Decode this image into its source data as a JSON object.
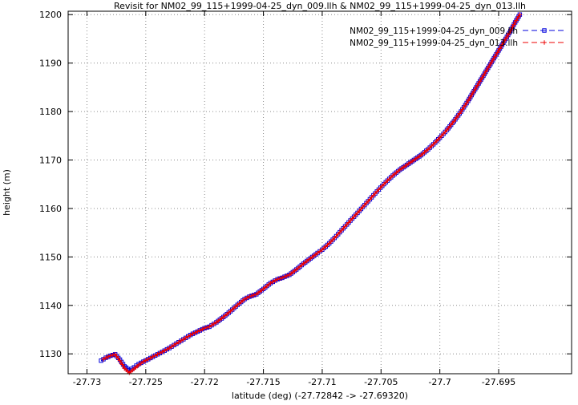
{
  "accent_colors": {
    "series1": "#0000dd",
    "series2": "#ee0000",
    "grid": "#8c8c8c",
    "axis": "#000000"
  },
  "chart_data": {
    "type": "line",
    "title": "Revisit for NM02_99_115+1999-04-25_dyn_009.llh & NM02_99_115+1999-04-25_dyn_013.llh",
    "xlabel": "latitude (deg) (-27.72842 -> -27.69320)",
    "ylabel": "height (m)",
    "xlim": [
      -27.7316,
      -27.6888
    ],
    "ylim": [
      1125.9,
      1200.7
    ],
    "grid": true,
    "legend_position": "top-right",
    "xticks": [
      {
        "value": -27.73,
        "label": "-27.73"
      },
      {
        "value": -27.725,
        "label": "-27.725"
      },
      {
        "value": -27.72,
        "label": "-27.72"
      },
      {
        "value": -27.715,
        "label": "-27.715"
      },
      {
        "value": -27.71,
        "label": "-27.71"
      },
      {
        "value": -27.705,
        "label": "-27.705"
      },
      {
        "value": -27.7,
        "label": "-27.7"
      },
      {
        "value": -27.695,
        "label": "-27.695"
      }
    ],
    "yticks": [
      1130,
      1140,
      1150,
      1160,
      1170,
      1180,
      1190,
      1200
    ],
    "series": [
      {
        "name": "NM02_99_115+1999-04-25_dyn_009.llh",
        "color": "#0000dd",
        "marker": "square",
        "points": [
          [
            -27.7288,
            1128.6
          ],
          [
            -27.7284,
            1129.2
          ],
          [
            -27.728,
            1129.6
          ],
          [
            -27.7276,
            1129.9
          ],
          [
            -27.7272,
            1128.8
          ],
          [
            -27.7268,
            1127.4
          ],
          [
            -27.7264,
            1126.6
          ],
          [
            -27.726,
            1127.2
          ],
          [
            -27.7256,
            1127.9
          ],
          [
            -27.7252,
            1128.4
          ],
          [
            -27.7248,
            1128.9
          ],
          [
            -27.7244,
            1129.4
          ],
          [
            -27.724,
            1129.9
          ],
          [
            -27.7236,
            1130.4
          ],
          [
            -27.723,
            1131.2
          ],
          [
            -27.7224,
            1132.1
          ],
          [
            -27.7218,
            1133.0
          ],
          [
            -27.7212,
            1133.9
          ],
          [
            -27.7206,
            1134.6
          ],
          [
            -27.72,
            1135.3
          ],
          [
            -27.7196,
            1135.6
          ],
          [
            -27.719,
            1136.5
          ],
          [
            -27.7184,
            1137.6
          ],
          [
            -27.7178,
            1138.8
          ],
          [
            -27.7172,
            1140.1
          ],
          [
            -27.7166,
            1141.3
          ],
          [
            -27.7162,
            1141.8
          ],
          [
            -27.7156,
            1142.3
          ],
          [
            -27.715,
            1143.4
          ],
          [
            -27.7144,
            1144.6
          ],
          [
            -27.7138,
            1145.4
          ],
          [
            -27.7134,
            1145.7
          ],
          [
            -27.7128,
            1146.3
          ],
          [
            -27.7122,
            1147.4
          ],
          [
            -27.7116,
            1148.6
          ],
          [
            -27.711,
            1149.7
          ],
          [
            -27.7104,
            1150.8
          ],
          [
            -27.71,
            1151.5
          ],
          [
            -27.7094,
            1152.8
          ],
          [
            -27.7088,
            1154.3
          ],
          [
            -27.7082,
            1155.9
          ],
          [
            -27.7076,
            1157.5
          ],
          [
            -27.707,
            1159.1
          ],
          [
            -27.7064,
            1160.7
          ],
          [
            -27.7058,
            1162.3
          ],
          [
            -27.7052,
            1163.9
          ],
          [
            -27.7046,
            1165.4
          ],
          [
            -27.704,
            1166.8
          ],
          [
            -27.7034,
            1168.0
          ],
          [
            -27.7028,
            1169.0
          ],
          [
            -27.7022,
            1170.0
          ],
          [
            -27.7016,
            1171.0
          ],
          [
            -27.701,
            1172.2
          ],
          [
            -27.7004,
            1173.6
          ],
          [
            -27.7,
            1174.6
          ],
          [
            -27.6994,
            1176.2
          ],
          [
            -27.6988,
            1178.0
          ],
          [
            -27.6982,
            1180.0
          ],
          [
            -27.6976,
            1182.2
          ],
          [
            -27.697,
            1184.6
          ],
          [
            -27.6964,
            1187.0
          ],
          [
            -27.6958,
            1189.4
          ],
          [
            -27.6952,
            1191.8
          ],
          [
            -27.6946,
            1194.2
          ],
          [
            -27.694,
            1196.6
          ],
          [
            -27.6936,
            1198.4
          ],
          [
            -27.6932,
            1200.0
          ]
        ]
      },
      {
        "name": "NM02_99_115+1999-04-25_dyn_013.llh",
        "color": "#ee0000",
        "marker": "plus",
        "points": [
          [
            -27.7286,
            1128.9
          ],
          [
            -27.7284,
            1129.2
          ],
          [
            -27.728,
            1129.6
          ],
          [
            -27.7276,
            1129.9
          ],
          [
            -27.7272,
            1128.6
          ],
          [
            -27.7268,
            1127.0
          ],
          [
            -27.7264,
            1126.1
          ],
          [
            -27.726,
            1126.9
          ],
          [
            -27.7256,
            1127.7
          ],
          [
            -27.7252,
            1128.4
          ],
          [
            -27.7248,
            1128.9
          ],
          [
            -27.7244,
            1129.4
          ],
          [
            -27.724,
            1129.9
          ],
          [
            -27.7236,
            1130.4
          ],
          [
            -27.723,
            1131.2
          ],
          [
            -27.7224,
            1132.1
          ],
          [
            -27.7218,
            1133.0
          ],
          [
            -27.7212,
            1133.9
          ],
          [
            -27.7206,
            1134.6
          ],
          [
            -27.72,
            1135.3
          ],
          [
            -27.7196,
            1135.6
          ],
          [
            -27.719,
            1136.5
          ],
          [
            -27.7184,
            1137.6
          ],
          [
            -27.7178,
            1138.8
          ],
          [
            -27.7172,
            1140.1
          ],
          [
            -27.7166,
            1141.3
          ],
          [
            -27.7162,
            1141.8
          ],
          [
            -27.7156,
            1142.3
          ],
          [
            -27.715,
            1143.4
          ],
          [
            -27.7144,
            1144.6
          ],
          [
            -27.7138,
            1145.4
          ],
          [
            -27.7134,
            1145.7
          ],
          [
            -27.7128,
            1146.3
          ],
          [
            -27.7122,
            1147.4
          ],
          [
            -27.7116,
            1148.6
          ],
          [
            -27.711,
            1149.7
          ],
          [
            -27.7104,
            1150.8
          ],
          [
            -27.71,
            1151.5
          ],
          [
            -27.7094,
            1152.8
          ],
          [
            -27.7088,
            1154.3
          ],
          [
            -27.7082,
            1155.9
          ],
          [
            -27.7076,
            1157.5
          ],
          [
            -27.707,
            1159.1
          ],
          [
            -27.7064,
            1160.7
          ],
          [
            -27.7058,
            1162.3
          ],
          [
            -27.7052,
            1163.9
          ],
          [
            -27.7046,
            1165.4
          ],
          [
            -27.704,
            1166.8
          ],
          [
            -27.7034,
            1168.0
          ],
          [
            -27.7028,
            1169.0
          ],
          [
            -27.7022,
            1170.0
          ],
          [
            -27.7016,
            1171.0
          ],
          [
            -27.701,
            1172.2
          ],
          [
            -27.7004,
            1173.6
          ],
          [
            -27.7,
            1174.6
          ],
          [
            -27.6994,
            1176.2
          ],
          [
            -27.6988,
            1178.0
          ],
          [
            -27.6982,
            1180.0
          ],
          [
            -27.6976,
            1182.2
          ],
          [
            -27.697,
            1184.6
          ],
          [
            -27.6964,
            1187.0
          ],
          [
            -27.6958,
            1189.4
          ],
          [
            -27.6952,
            1191.8
          ],
          [
            -27.6946,
            1194.2
          ],
          [
            -27.694,
            1196.6
          ],
          [
            -27.6936,
            1198.4
          ],
          [
            -27.6932,
            1200.0
          ]
        ]
      }
    ]
  }
}
